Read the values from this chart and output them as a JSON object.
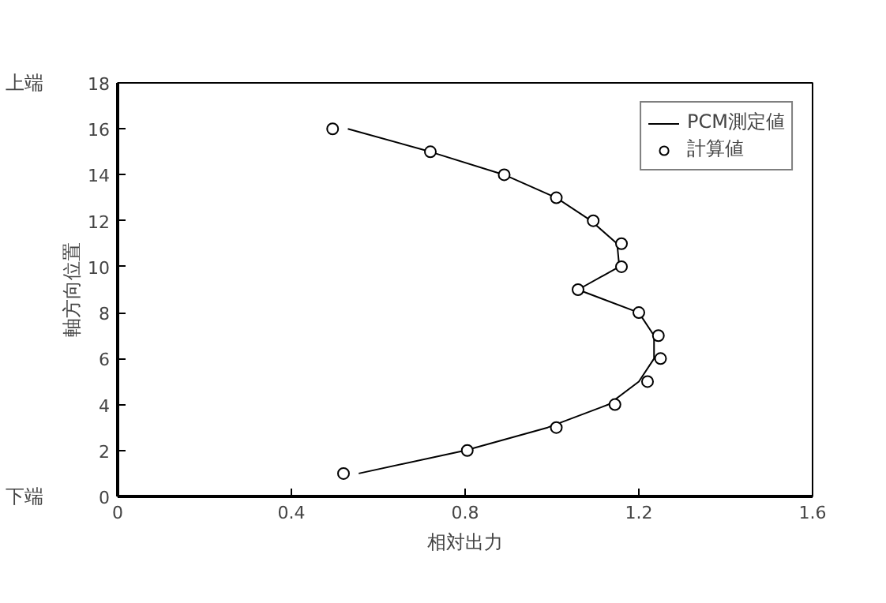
{
  "chart_data": {
    "type": "scatter",
    "xlabel": "相対出力",
    "ylabel": "軸方向位置",
    "xlim": [
      0,
      1.6
    ],
    "ylim": [
      0,
      18
    ],
    "xticks": [
      0,
      0.4,
      0.8,
      1.2,
      1.6
    ],
    "yticks": [
      0,
      2,
      4,
      6,
      8,
      10,
      12,
      14,
      16,
      18
    ],
    "annotations": [
      "上端",
      "下端"
    ],
    "legend": "top right",
    "grid": false,
    "series": [
      {
        "name": "PCM測定値",
        "type": "line",
        "color": "#000000",
        "line_style": "solid",
        "x": [
          0.53,
          0.72,
          0.89,
          1.01,
          1.09,
          1.15,
          1.155,
          1.06,
          1.2,
          1.235,
          1.235,
          1.2,
          1.13,
          0.99,
          0.8,
          0.555
        ],
        "values": [
          16,
          15,
          14,
          13,
          12,
          11,
          10,
          9,
          8,
          7,
          6,
          5,
          4,
          3,
          2,
          1
        ]
      },
      {
        "name": "計算値",
        "color": "#000000",
        "marker": "circle",
        "x": [
          0.495,
          0.72,
          0.89,
          1.01,
          1.095,
          1.16,
          1.16,
          1.06,
          1.2,
          1.245,
          1.25,
          1.22,
          1.145,
          1.01,
          0.805,
          0.52
        ],
        "values": [
          16,
          15,
          14,
          13,
          12,
          11,
          10,
          9,
          8,
          7,
          6,
          5,
          4,
          3,
          2,
          1
        ]
      }
    ]
  }
}
